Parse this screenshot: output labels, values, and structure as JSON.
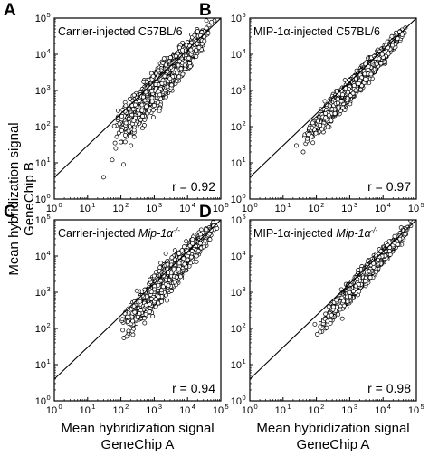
{
  "figure": {
    "ylabel_line1": "Mean hybridization signal",
    "ylabel_line2": "GeneChip B",
    "xlabel_line1": "Mean hybridization signal",
    "xlabel_line2": "GeneChip A"
  },
  "chart_data": [
    {
      "type": "scatter",
      "panel_letter": "A",
      "title": "Carrier-injected C57BL/6",
      "title_italic": "",
      "title_sup": "",
      "r_text": "r = 0.92",
      "xlabel": "Mean hybridization signal GeneChip A",
      "ylabel": "Mean hybridization signal GeneChip B",
      "x_scale": "log",
      "y_scale": "log",
      "xlim": [
        1,
        100000
      ],
      "ylim": [
        1,
        100000
      ],
      "x_ticks": [
        "10",
        "10",
        "10",
        "10",
        "10",
        "10"
      ],
      "x_tick_exponents": [
        "0",
        "1",
        "2",
        "3",
        "4",
        "5"
      ],
      "y_ticks": [
        "10",
        "10",
        "10",
        "10",
        "10",
        "10"
      ],
      "y_tick_exponents": [
        "0",
        "1",
        "2",
        "3",
        "4",
        "5"
      ],
      "reference_line": "y = x",
      "grid": false,
      "cloud": {
        "log_x_range": [
          1.7,
          4.85
        ],
        "log_y_range": [
          1.6,
          4.9
        ],
        "spread_log": 0.2
      },
      "outliers": [
        [
          30,
          4
        ],
        [
          55,
          12
        ],
        [
          70,
          25
        ],
        [
          120,
          9
        ],
        [
          200,
          30
        ],
        [
          90,
          120
        ],
        [
          250,
          80
        ]
      ]
    },
    {
      "type": "scatter",
      "panel_letter": "B",
      "title": "MIP-1α-injected C57BL/6",
      "title_italic": "",
      "title_sup": "",
      "r_text": "r = 0.97",
      "xlabel": "Mean hybridization signal GeneChip A",
      "ylabel": "",
      "x_scale": "log",
      "y_scale": "log",
      "xlim": [
        1,
        100000
      ],
      "ylim": [
        1,
        100000
      ],
      "x_ticks": [
        "10",
        "10",
        "10",
        "10",
        "10",
        "10"
      ],
      "x_tick_exponents": [
        "0",
        "1",
        "2",
        "3",
        "4",
        "5"
      ],
      "y_ticks": [
        "10",
        "10",
        "10",
        "10",
        "10",
        "10"
      ],
      "y_tick_exponents": [
        "0",
        "1",
        "2",
        "3",
        "4",
        "5"
      ],
      "reference_line": "y = x",
      "grid": false,
      "cloud": {
        "log_x_range": [
          1.5,
          4.85
        ],
        "log_y_range": [
          1.5,
          4.85
        ],
        "spread_log": 0.12
      },
      "outliers": [
        [
          25,
          30
        ],
        [
          40,
          20
        ],
        [
          60,
          90
        ],
        [
          180,
          500
        ]
      ]
    },
    {
      "type": "scatter",
      "panel_letter": "C",
      "title": "Carrier-injected ",
      "title_italic": "Mip-1α",
      "title_sup": "-/-",
      "r_text": "r = 0.94",
      "xlabel": "Mean hybridization signal GeneChip A",
      "ylabel": "Mean hybridization signal GeneChip B",
      "x_scale": "log",
      "y_scale": "log",
      "xlim": [
        1,
        100000
      ],
      "ylim": [
        1,
        100000
      ],
      "x_ticks": [
        "10",
        "10",
        "10",
        "10",
        "10",
        "10"
      ],
      "x_tick_exponents": [
        "0",
        "1",
        "2",
        "3",
        "4",
        "5"
      ],
      "y_ticks": [
        "10",
        "10",
        "10",
        "10",
        "10",
        "10"
      ],
      "y_tick_exponents": [
        "0",
        "1",
        "2",
        "3",
        "4",
        "5"
      ],
      "reference_line": "y = x",
      "grid": false,
      "cloud": {
        "log_x_range": [
          1.9,
          5.0
        ],
        "log_y_range": [
          1.8,
          5.0
        ],
        "spread_log": 0.17
      },
      "outliers": [
        [
          110,
          180
        ],
        [
          150,
          60
        ],
        [
          300,
          1100
        ]
      ]
    },
    {
      "type": "scatter",
      "panel_letter": "D",
      "title": "MIP-1α-injected ",
      "title_italic": "Mip-1α",
      "title_sup": "-/-",
      "r_text": "r = 0.98",
      "xlabel": "Mean hybridization signal GeneChip A",
      "ylabel": "",
      "x_scale": "log",
      "y_scale": "log",
      "xlim": [
        1,
        100000
      ],
      "ylim": [
        1,
        100000
      ],
      "x_ticks": [
        "10",
        "10",
        "10",
        "10",
        "10",
        "10"
      ],
      "x_tick_exponents": [
        "0",
        "1",
        "2",
        "3",
        "4",
        "5"
      ],
      "y_ticks": [
        "10",
        "10",
        "10",
        "10",
        "10",
        "10"
      ],
      "y_tick_exponents": [
        "0",
        "1",
        "2",
        "3",
        "4",
        "5"
      ],
      "reference_line": "y = x",
      "grid": false,
      "cloud": {
        "log_x_range": [
          2.0,
          4.95
        ],
        "log_y_range": [
          2.0,
          4.95
        ],
        "spread_log": 0.1
      },
      "outliers": [
        [
          90,
          130
        ],
        [
          130,
          80
        ],
        [
          400,
          600
        ]
      ]
    }
  ]
}
